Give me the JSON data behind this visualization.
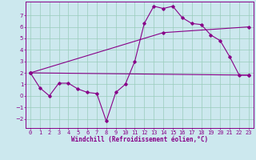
{
  "xlabel": "Windchill (Refroidissement éolien,°C)",
  "bg_color": "#cce8ee",
  "line_color": "#880088",
  "grid_color": "#99ccbb",
  "xlim": [
    -0.5,
    23.5
  ],
  "ylim": [
    -2.8,
    8.2
  ],
  "xticks": [
    0,
    1,
    2,
    3,
    4,
    5,
    6,
    7,
    8,
    9,
    10,
    11,
    12,
    13,
    14,
    15,
    16,
    17,
    18,
    19,
    20,
    21,
    22,
    23
  ],
  "yticks": [
    -2,
    -1,
    0,
    1,
    2,
    3,
    4,
    5,
    6,
    7
  ],
  "series_main": {
    "x": [
      0,
      1,
      2,
      3,
      4,
      5,
      6,
      7,
      8,
      9,
      10,
      11,
      12,
      13,
      14,
      15,
      16,
      17,
      18,
      19,
      20,
      21,
      22,
      23
    ],
    "y": [
      2.0,
      0.7,
      0.0,
      1.1,
      1.1,
      0.6,
      0.3,
      0.2,
      -2.2,
      0.3,
      1.0,
      3.0,
      6.3,
      7.8,
      7.6,
      7.8,
      6.8,
      6.3,
      6.2,
      5.3,
      4.8,
      3.4,
      1.8,
      1.8
    ]
  },
  "series_flat": {
    "x": [
      0,
      23
    ],
    "y": [
      2.0,
      1.8
    ]
  },
  "series_diag": {
    "x": [
      0,
      14,
      23
    ],
    "y": [
      2.0,
      5.5,
      6.0
    ]
  },
  "markersize": 1.8,
  "linewidth": 0.8,
  "tick_fontsize": 5.0,
  "xlabel_fontsize": 5.5
}
